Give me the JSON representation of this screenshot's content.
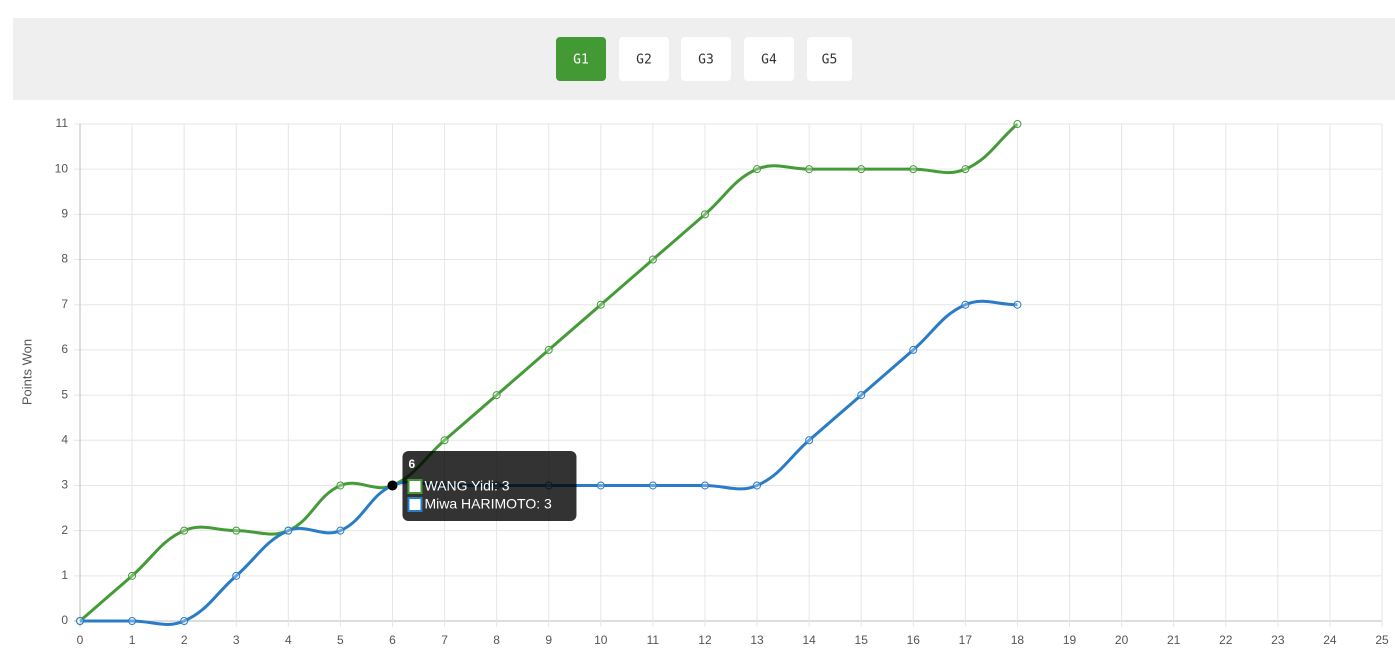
{
  "tabs": [
    "G1",
    "G2",
    "G3",
    "G4",
    "G5"
  ],
  "active_tab": 0,
  "chart_data": {
    "type": "line",
    "y_label": "Points Won",
    "x": [
      0,
      1,
      2,
      3,
      4,
      5,
      6,
      7,
      8,
      9,
      10,
      11,
      12,
      13,
      14,
      15,
      16,
      17,
      18
    ],
    "series": [
      {
        "name": "WANG Yidi",
        "color": "#449b38",
        "values": [
          0,
          1,
          2,
          2,
          2,
          3,
          3,
          4,
          5,
          6,
          7,
          8,
          9,
          10,
          10,
          10,
          10,
          10,
          11
        ]
      },
      {
        "name": "Miwa HARIMOTO",
        "color": "#2a7cc7",
        "values": [
          0,
          0,
          0,
          1,
          2,
          2,
          3,
          3,
          3,
          3,
          3,
          3,
          3,
          3,
          4,
          5,
          6,
          7,
          7
        ]
      }
    ],
    "xlim": [
      0,
      25
    ],
    "xticks": [
      0,
      1,
      2,
      3,
      4,
      5,
      6,
      7,
      8,
      9,
      10,
      11,
      12,
      13,
      14,
      15,
      16,
      17,
      18,
      19,
      20,
      21,
      22,
      23,
      24,
      25
    ],
    "ylim": [
      0,
      11
    ],
    "yticks": [
      0,
      1,
      2,
      3,
      4,
      5,
      6,
      7,
      8,
      9,
      10,
      11
    ],
    "grid": true,
    "tooltip": {
      "title": "6",
      "items": [
        "WANG Yidi: 3",
        "Miwa HARIMOTO: 3"
      ]
    }
  }
}
